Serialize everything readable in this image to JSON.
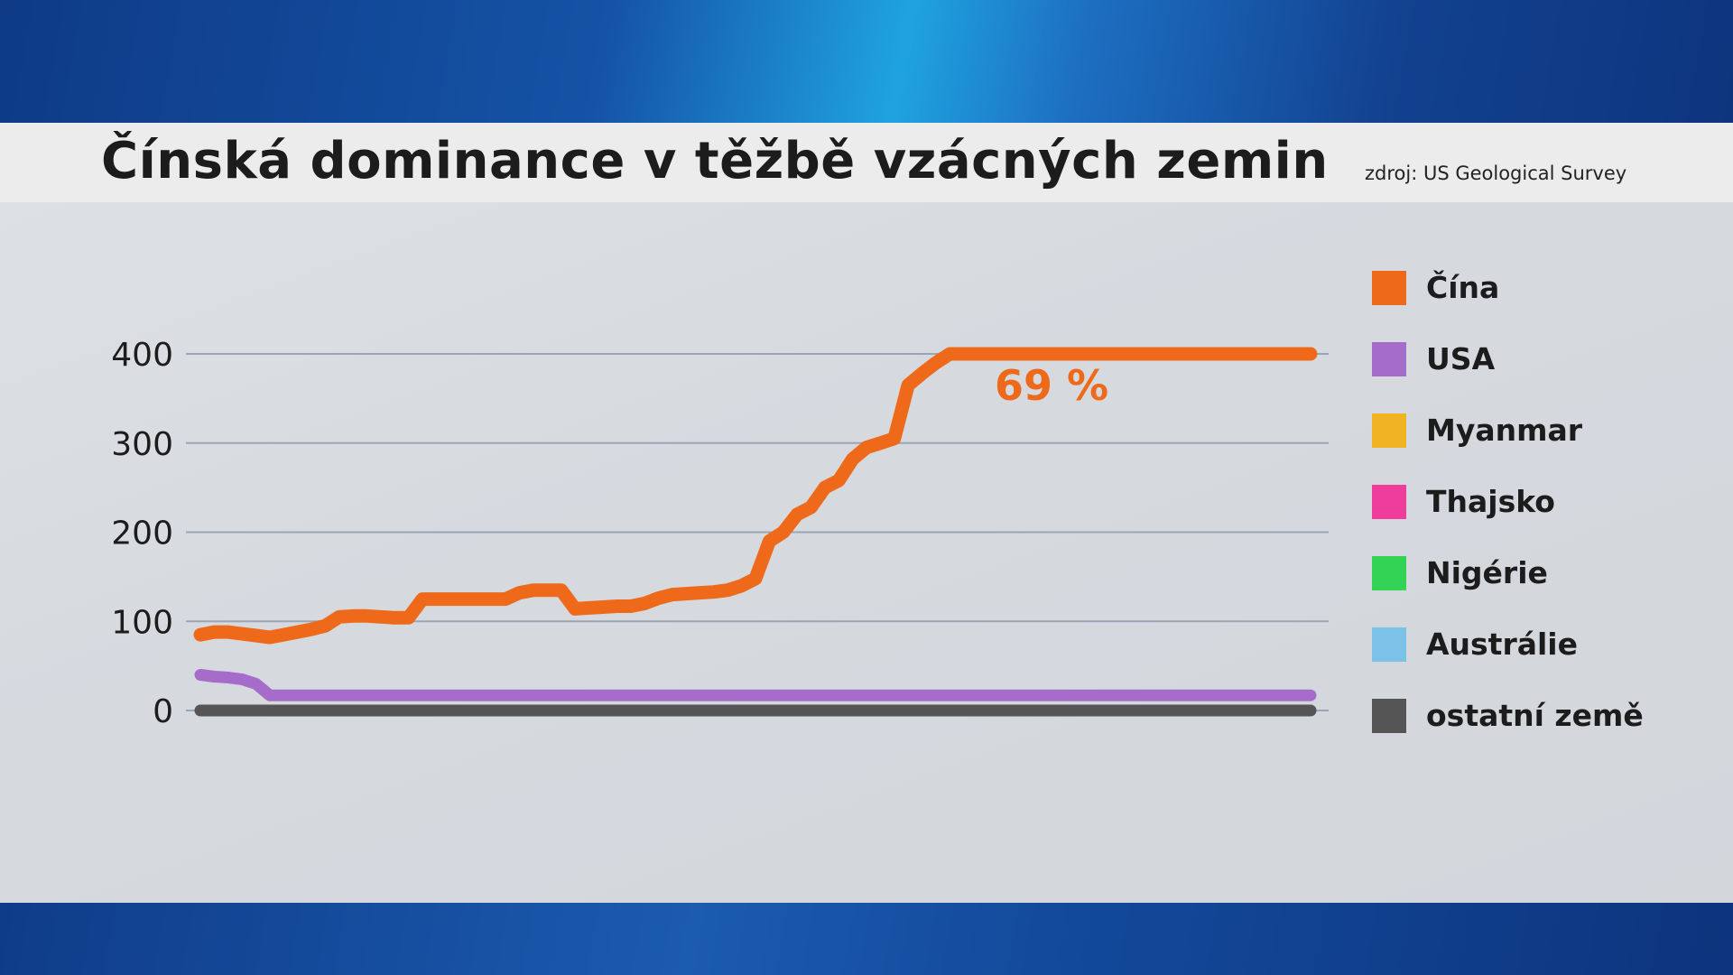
{
  "header": {
    "title": "Čínská dominance v těžbě vzácných zemin",
    "source": "zdroj: US Geological Survey"
  },
  "colors": {
    "Čína": "#ee6a1a",
    "USA": "#a56cc9",
    "Myanmar": "#f0b423",
    "Thajsko": "#ee3d9a",
    "Nigérie": "#33d456",
    "Austrálie": "#7cc2e8",
    "ostatní země": "#555555"
  },
  "chart_data": {
    "type": "line",
    "title": "Čínská dominance v těžbě vzácných zemin",
    "xlabel": "",
    "ylabel": "",
    "ylim": [
      0,
      400
    ],
    "yticks": [
      0,
      100,
      200,
      300,
      400
    ],
    "grid": true,
    "legend_position": "right",
    "annotation": {
      "text": "69 %",
      "series": "Čína"
    },
    "x": [
      0,
      1,
      2,
      3,
      4,
      5,
      6,
      7,
      8,
      9,
      10,
      11,
      12,
      13,
      14,
      15,
      16,
      17,
      18,
      19,
      20,
      21,
      22,
      23,
      24,
      25,
      26,
      27,
      28,
      29,
      30,
      31,
      32,
      33,
      34,
      35,
      36,
      37,
      38,
      39,
      40,
      41,
      42,
      43,
      44,
      45,
      46,
      47,
      48,
      49,
      50,
      51,
      52,
      53,
      54,
      55,
      56,
      57,
      58,
      59,
      60,
      61,
      62,
      63,
      64,
      65,
      66,
      67,
      68,
      69,
      70,
      71,
      72,
      73,
      74,
      75,
      76,
      77,
      78,
      79,
      80
    ],
    "series": [
      {
        "name": "Čína",
        "values": [
          85,
          88,
          88,
          86,
          84,
          82,
          85,
          88,
          91,
          95,
          105,
          106,
          106,
          105,
          104,
          104,
          125,
          125,
          125,
          125,
          125,
          125,
          125,
          132,
          135,
          135,
          135,
          114,
          115,
          116,
          117,
          117,
          120,
          126,
          130,
          131,
          132,
          133,
          135,
          140,
          148,
          190,
          200,
          220,
          228,
          250,
          258,
          282,
          295,
          300,
          305,
          365,
          378,
          390,
          400,
          400,
          400,
          400,
          400,
          400,
          400,
          400,
          400,
          400,
          400,
          400,
          400,
          400,
          400,
          400,
          400,
          400,
          400,
          400,
          400,
          400,
          400,
          400,
          400,
          400,
          400
        ]
      },
      {
        "name": "USA",
        "values": [
          40,
          38,
          37,
          35,
          30,
          17,
          17,
          17,
          17,
          17,
          17,
          17,
          17,
          17,
          17,
          17,
          17,
          17,
          17,
          17,
          17,
          17,
          17,
          17,
          17,
          17,
          17,
          17,
          17,
          17,
          17,
          17,
          17,
          17,
          17,
          17,
          17,
          17,
          17,
          17,
          17,
          17,
          17,
          17,
          17,
          17,
          17,
          17,
          17,
          17,
          17,
          17,
          17,
          17,
          17,
          17,
          17,
          17,
          17,
          17,
          17,
          17,
          17,
          17,
          17,
          17,
          17,
          17,
          17,
          17,
          17,
          17,
          17,
          17,
          17,
          17,
          17,
          17,
          17,
          17,
          17
        ]
      },
      {
        "name": "Myanmar",
        "values": [
          null,
          null,
          null,
          null,
          null,
          null,
          null,
          null,
          null,
          null,
          null,
          null,
          null,
          null,
          null,
          null,
          null,
          null,
          null,
          null,
          null,
          null,
          null,
          null,
          null,
          null,
          null,
          null,
          null,
          null,
          null,
          null,
          null,
          null,
          null,
          null,
          null,
          null,
          null,
          null,
          null,
          null,
          null,
          null,
          null,
          null,
          null,
          null,
          null,
          null,
          null,
          null,
          null,
          null,
          null,
          null,
          null,
          null,
          null,
          null,
          null,
          null,
          null,
          null,
          null,
          null,
          null,
          null,
          null,
          null,
          null,
          null,
          null,
          null,
          null,
          null,
          null,
          null,
          null,
          null,
          null
        ]
      },
      {
        "name": "Thajsko",
        "values": [
          null,
          null,
          null,
          null,
          null,
          null,
          null,
          null,
          null,
          null,
          null,
          null,
          null,
          null,
          null,
          null,
          null,
          null,
          null,
          null,
          null,
          null,
          null,
          null,
          null,
          null,
          null,
          null,
          null,
          null,
          null,
          null,
          null,
          null,
          null,
          null,
          null,
          null,
          null,
          null,
          null,
          null,
          null,
          null,
          null,
          null,
          null,
          null,
          null,
          null,
          null,
          null,
          null,
          null,
          null,
          null,
          null,
          null,
          null,
          null,
          null,
          null,
          null,
          null,
          null,
          null,
          null,
          null,
          null,
          null,
          null,
          null,
          null,
          null,
          null,
          null,
          null,
          null,
          null,
          null,
          null
        ]
      },
      {
        "name": "Nigérie",
        "values": [
          null,
          null,
          null,
          null,
          null,
          null,
          null,
          null,
          null,
          null,
          null,
          null,
          null,
          null,
          null,
          null,
          null,
          null,
          null,
          null,
          null,
          null,
          null,
          null,
          null,
          null,
          null,
          null,
          null,
          null,
          null,
          null,
          null,
          null,
          null,
          null,
          null,
          null,
          null,
          null,
          null,
          null,
          null,
          null,
          null,
          null,
          null,
          null,
          null,
          null,
          null,
          null,
          null,
          null,
          null,
          null,
          null,
          null,
          null,
          null,
          null,
          null,
          null,
          null,
          null,
          null,
          null,
          null,
          null,
          null,
          null,
          null,
          null,
          null,
          null,
          null,
          null,
          null,
          null,
          null,
          null
        ]
      },
      {
        "name": "Austrálie",
        "values": [
          null,
          null,
          null,
          null,
          null,
          null,
          null,
          null,
          null,
          null,
          null,
          null,
          null,
          null,
          null,
          null,
          null,
          null,
          null,
          null,
          null,
          null,
          null,
          null,
          null,
          null,
          null,
          null,
          null,
          null,
          null,
          null,
          null,
          null,
          null,
          null,
          null,
          null,
          null,
          null,
          null,
          null,
          null,
          null,
          null,
          null,
          null,
          null,
          null,
          null,
          null,
          null,
          null,
          null,
          null,
          null,
          null,
          null,
          null,
          null,
          null,
          null,
          null,
          null,
          null,
          null,
          null,
          null,
          null,
          null,
          null,
          null,
          null,
          null,
          null,
          null,
          null,
          null,
          null,
          null,
          null
        ]
      },
      {
        "name": "ostatní země",
        "values": [
          0,
          0,
          0,
          0,
          0,
          0,
          0,
          0,
          0,
          0,
          0,
          0,
          0,
          0,
          0,
          0,
          0,
          0,
          0,
          0,
          0,
          0,
          0,
          0,
          0,
          0,
          0,
          0,
          0,
          0,
          0,
          0,
          0,
          0,
          0,
          0,
          0,
          0,
          0,
          0,
          0,
          0,
          0,
          0,
          0,
          0,
          0,
          0,
          0,
          0,
          0,
          0,
          0,
          0,
          0,
          0,
          0,
          0,
          0,
          0,
          0,
          0,
          0,
          0,
          0,
          0,
          0,
          0,
          0,
          0,
          0,
          0,
          0,
          0,
          0,
          0,
          0,
          0,
          0,
          0,
          0
        ]
      }
    ]
  }
}
